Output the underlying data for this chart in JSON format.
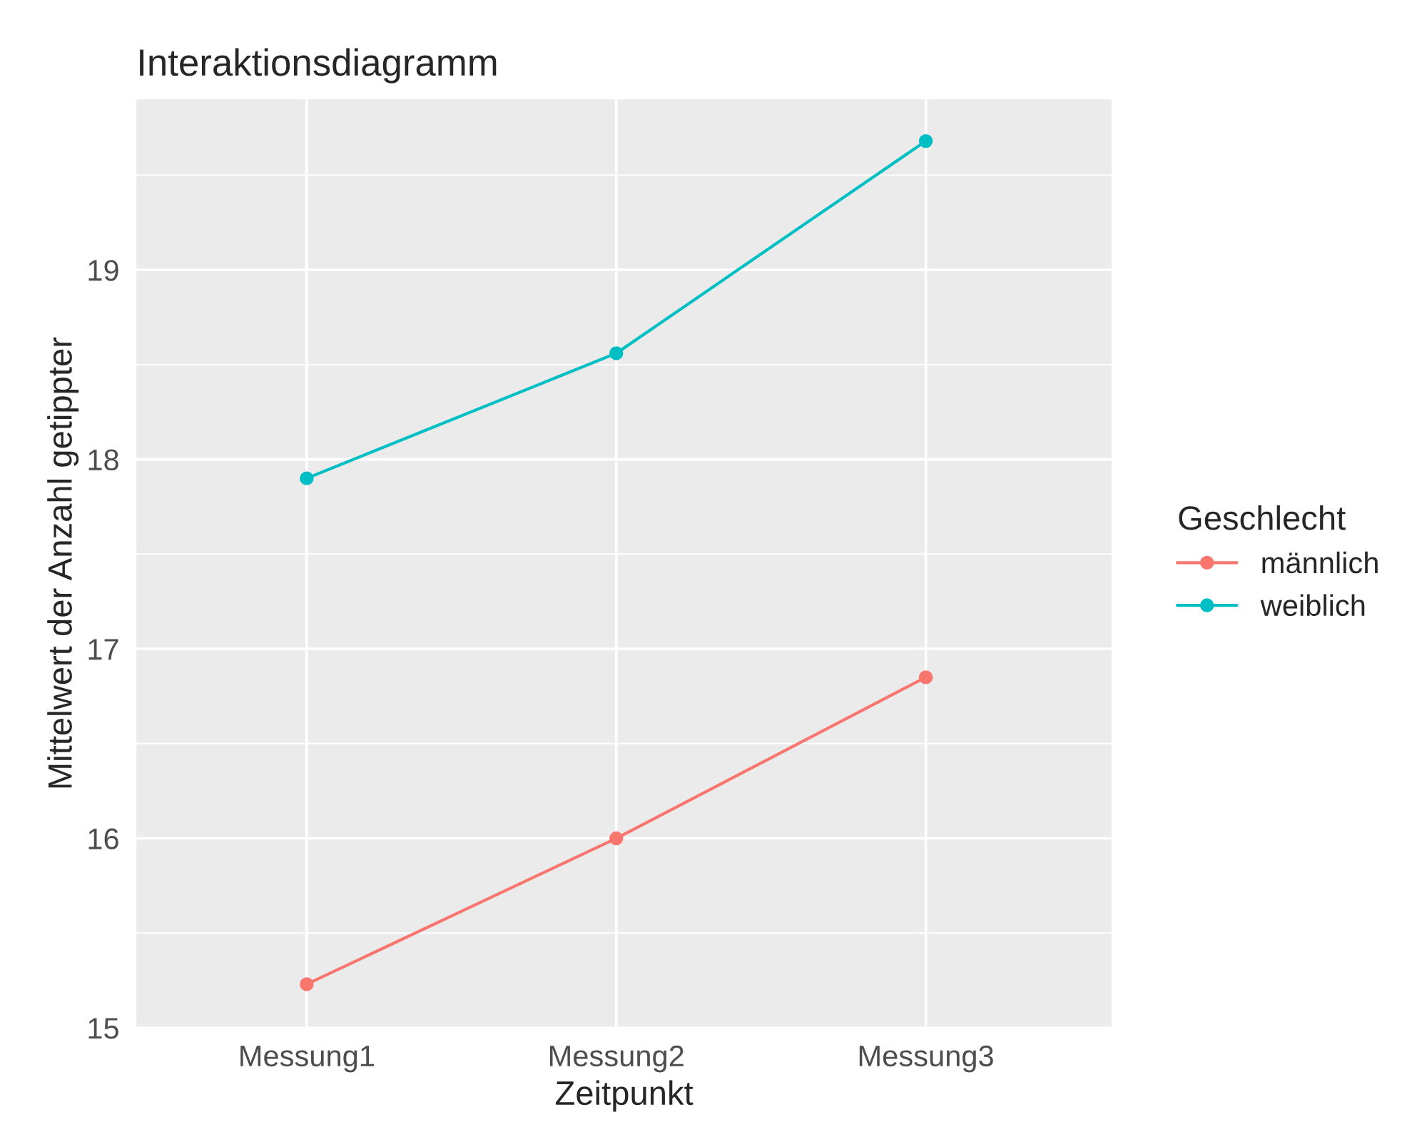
{
  "chart_data": {
    "type": "line",
    "title": "Interaktionsdiagramm",
    "xlabel": "Zeitpunkt",
    "ylabel": "Mittelwert der Anzahl getippter",
    "legend_title": "Geschlecht",
    "categories": [
      "Messung1",
      "Messung2",
      "Messung3"
    ],
    "series": [
      {
        "name": "männlich",
        "color": "#f8766d",
        "values": [
          15.23,
          16.0,
          16.85
        ]
      },
      {
        "name": "weiblich",
        "color": "#00bfc4",
        "values": [
          17.9,
          18.56,
          19.68
        ]
      }
    ],
    "ylim": [
      15,
      19.9
    ],
    "yticks": [
      15,
      16,
      17,
      18,
      19
    ],
    "grid": true,
    "legend": "right",
    "marker": "circle",
    "line_style": "solid"
  }
}
